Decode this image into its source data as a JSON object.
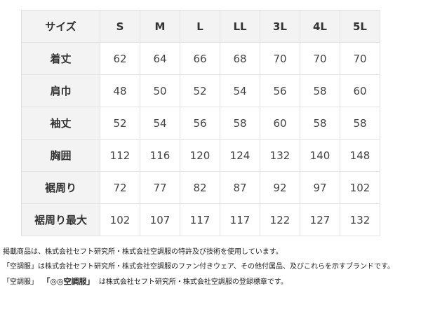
{
  "table": {
    "header": [
      "サイズ",
      "S",
      "M",
      "L",
      "LL",
      "3L",
      "4L",
      "5L"
    ],
    "rows": [
      {
        "label": "着丈",
        "values": [
          "62",
          "64",
          "66",
          "68",
          "70",
          "70",
          "70"
        ]
      },
      {
        "label": "肩巾",
        "values": [
          "48",
          "50",
          "52",
          "54",
          "56",
          "58",
          "60"
        ]
      },
      {
        "label": "袖丈",
        "values": [
          "52",
          "54",
          "56",
          "58",
          "60",
          "58",
          "58"
        ]
      },
      {
        "label": "胸囲",
        "values": [
          "112",
          "116",
          "120",
          "124",
          "132",
          "140",
          "148"
        ]
      },
      {
        "label": "裾周り",
        "values": [
          "72",
          "77",
          "82",
          "87",
          "92",
          "97",
          "102"
        ]
      },
      {
        "label": "裾周り最大",
        "values": [
          "102",
          "107",
          "117",
          "117",
          "122",
          "127",
          "132"
        ]
      }
    ]
  },
  "notes": {
    "line1": "掲載商品は、株式会社セフト研究所・株式会社空調服の特許及び技術を使用しています。",
    "line2": "「空調服」は株式会社セフト研究所・株式会社空調服のファン付きウェア、その他付属品、及びこれらを示すブランドです。",
    "line3_a": "「空調服」",
    "line3_logo": "「◎◎空調服」",
    "line3_b": "は株式会社セフト研究所・株式会社空調服の登録標章です。"
  }
}
